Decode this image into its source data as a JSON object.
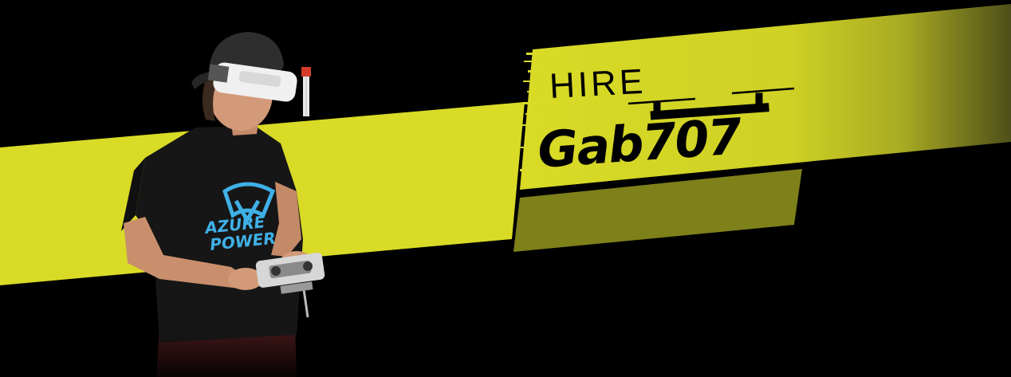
{
  "banner": {
    "hire_label": "HIRE",
    "name_label": "Gab707",
    "shirt_line1": "AZURE",
    "shirt_line2": "POWER"
  },
  "colors": {
    "background": "#000000",
    "accent": "#d9db26",
    "accent_dark": "#8a8c18",
    "shirt_logo": "#3fb0e6",
    "skin": "#d29a78",
    "shirt": "#161616"
  },
  "icons": {
    "drone": "quadcopter-silhouette",
    "pilot": "fpv-pilot-photo"
  }
}
